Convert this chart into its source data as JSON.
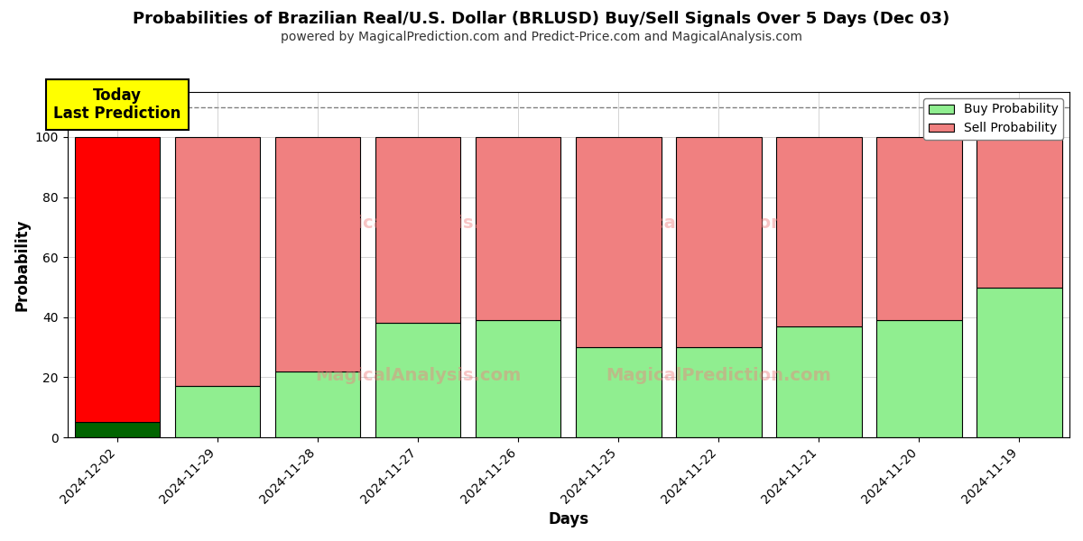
{
  "title": "Probabilities of Brazilian Real/U.S. Dollar (BRLUSD) Buy/Sell Signals Over 5 Days (Dec 03)",
  "subtitle": "powered by MagicalPrediction.com and Predict-Price.com and MagicalAnalysis.com",
  "xlabel": "Days",
  "ylabel": "Probability",
  "categories": [
    "2024-12-02",
    "2024-11-29",
    "2024-11-28",
    "2024-11-27",
    "2024-11-26",
    "2024-11-25",
    "2024-11-22",
    "2024-11-21",
    "2024-11-20",
    "2024-11-19"
  ],
  "buy_values": [
    5,
    17,
    22,
    38,
    39,
    30,
    30,
    37,
    39,
    50
  ],
  "sell_values": [
    95,
    83,
    78,
    62,
    61,
    70,
    70,
    63,
    61,
    50
  ],
  "buy_color_today": "#006400",
  "sell_color_today": "#ff0000",
  "buy_color": "#90EE90",
  "sell_color": "#F08080",
  "bar_edge_color": "#000000",
  "today_annotation_text": "Today\nLast Prediction",
  "today_annotation_bg": "#ffff00",
  "legend_buy": "Buy Probability",
  "legend_sell": "Sell Probability",
  "ylim": [
    0,
    115
  ],
  "dashed_line_y": 110,
  "background_color": "#ffffff",
  "grid_color": "#aaaaaa",
  "bar_width": 0.85,
  "watermark1": "MagicalAnalysis.com",
  "watermark2": "MagicalPrediction.com"
}
